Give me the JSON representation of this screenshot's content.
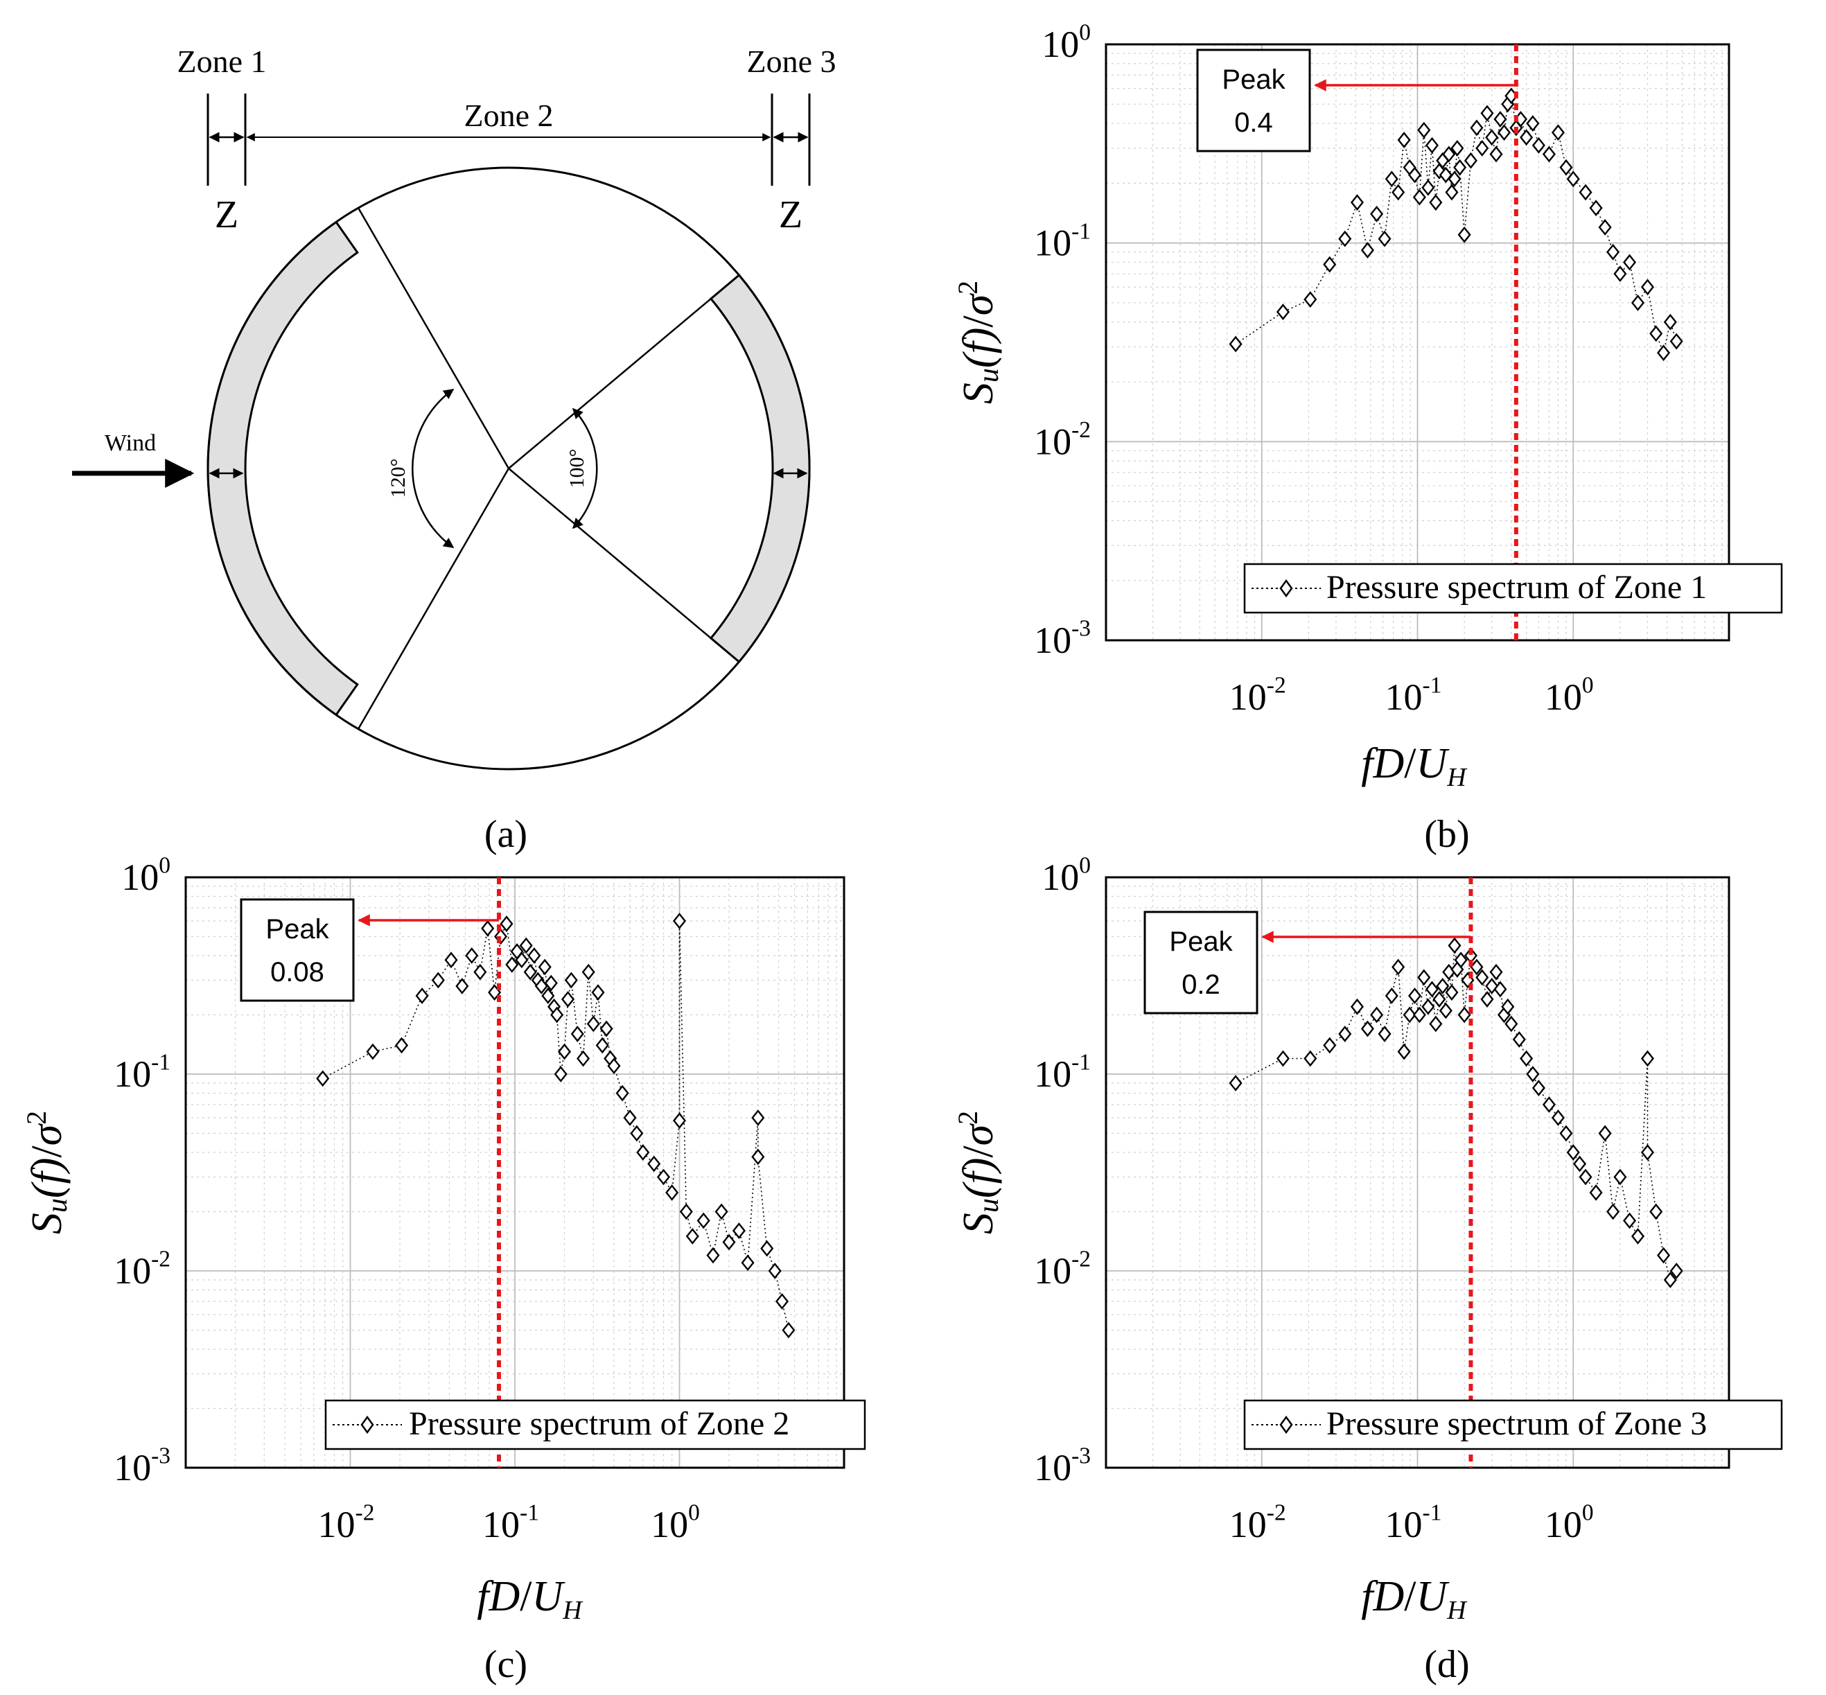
{
  "diagram": {
    "caption": "(a)",
    "zone1_label": "Zone 1",
    "zone2_label": "Zone 2",
    "zone3_label": "Zone 3",
    "z_left": "Z",
    "z_right": "Z",
    "wind_label": "Wind",
    "angle_left": "120°",
    "angle_right": "100°"
  },
  "colors": {
    "peak_line": "#e8161b",
    "marker": "#000000",
    "grid": "#cfcfcf"
  },
  "chart_data": [
    {
      "type": "scatter",
      "caption": "(b)",
      "xscale": "log",
      "yscale": "log",
      "xlim": [
        0.001,
        10
      ],
      "ylim": [
        0.001,
        1
      ],
      "xticks": [
        0.01,
        0.1,
        1
      ],
      "yticks": [
        0.001,
        0.01,
        0.1,
        1
      ],
      "xlabel_main": "fD",
      "xlabel_sub": "H",
      "ylabel_main": "S",
      "ylabel_sub": "u",
      "legend": "Pressure spectrum of Zone 1",
      "peak_title": "Peak",
      "peak_value": "0.4",
      "peak_x": 0.43,
      "series": [
        {
          "name": "Pressure spectrum of Zone 1",
          "x": [
            0.0068,
            0.0137,
            0.0205,
            0.0273,
            0.0342,
            0.041,
            0.0478,
            0.0547,
            0.0615,
            0.0683,
            0.0752,
            0.082,
            0.089,
            0.096,
            0.103,
            0.11,
            0.117,
            0.124,
            0.131,
            0.138,
            0.145,
            0.152,
            0.159,
            0.166,
            0.173,
            0.18,
            0.187,
            0.2,
            0.22,
            0.24,
            0.26,
            0.28,
            0.3,
            0.32,
            0.34,
            0.36,
            0.38,
            0.4,
            0.43,
            0.46,
            0.5,
            0.55,
            0.6,
            0.7,
            0.8,
            0.9,
            1.0,
            1.2,
            1.4,
            1.6,
            1.8,
            2.0,
            2.3,
            2.6,
            3.0,
            3.4,
            3.8,
            4.2,
            4.6
          ],
          "y": [
            0.031,
            0.045,
            0.052,
            0.078,
            0.105,
            0.16,
            0.092,
            0.14,
            0.105,
            0.21,
            0.18,
            0.33,
            0.24,
            0.22,
            0.17,
            0.37,
            0.19,
            0.31,
            0.16,
            0.23,
            0.26,
            0.22,
            0.28,
            0.18,
            0.21,
            0.3,
            0.24,
            0.11,
            0.26,
            0.38,
            0.3,
            0.45,
            0.34,
            0.28,
            0.42,
            0.36,
            0.5,
            0.55,
            0.38,
            0.42,
            0.34,
            0.4,
            0.31,
            0.28,
            0.36,
            0.24,
            0.21,
            0.18,
            0.15,
            0.12,
            0.09,
            0.07,
            0.08,
            0.05,
            0.06,
            0.035,
            0.028,
            0.04,
            0.032
          ]
        }
      ]
    },
    {
      "type": "scatter",
      "caption": "(c)",
      "xscale": "log",
      "yscale": "log",
      "xlim": [
        0.001,
        10
      ],
      "ylim": [
        0.001,
        1
      ],
      "xticks": [
        0.01,
        0.1,
        1
      ],
      "yticks": [
        0.001,
        0.01,
        0.1,
        1
      ],
      "xlabel_main": "fD",
      "xlabel_sub": "H",
      "ylabel_main": "S",
      "ylabel_sub": "u",
      "legend": "Pressure spectrum of Zone 2",
      "peak_title": "Peak",
      "peak_value": "0.08",
      "peak_x": 0.08,
      "series": [
        {
          "name": "Pressure spectrum of Zone 2",
          "x": [
            0.0068,
            0.0137,
            0.0205,
            0.0273,
            0.0342,
            0.041,
            0.0478,
            0.0547,
            0.0615,
            0.0683,
            0.0752,
            0.082,
            0.089,
            0.096,
            0.103,
            0.11,
            0.117,
            0.124,
            0.131,
            0.138,
            0.145,
            0.152,
            0.159,
            0.166,
            0.173,
            0.18,
            0.19,
            0.2,
            0.21,
            0.22,
            0.24,
            0.26,
            0.28,
            0.3,
            0.32,
            0.34,
            0.36,
            0.38,
            0.4,
            0.45,
            0.5,
            0.55,
            0.6,
            0.7,
            0.8,
            0.9,
            1.0,
            1.0,
            1.1,
            1.2,
            1.4,
            1.6,
            1.8,
            2.0,
            2.3,
            2.6,
            3.0,
            3.0,
            3.4,
            3.8,
            4.2,
            4.6
          ],
          "y": [
            0.095,
            0.13,
            0.14,
            0.25,
            0.3,
            0.38,
            0.28,
            0.4,
            0.33,
            0.55,
            0.26,
            0.5,
            0.58,
            0.36,
            0.42,
            0.38,
            0.45,
            0.33,
            0.4,
            0.3,
            0.28,
            0.35,
            0.25,
            0.29,
            0.22,
            0.2,
            0.1,
            0.13,
            0.24,
            0.3,
            0.16,
            0.12,
            0.33,
            0.18,
            0.26,
            0.14,
            0.17,
            0.12,
            0.11,
            0.08,
            0.06,
            0.05,
            0.04,
            0.035,
            0.03,
            0.025,
            0.058,
            0.6,
            0.02,
            0.015,
            0.018,
            0.012,
            0.02,
            0.014,
            0.016,
            0.011,
            0.06,
            0.038,
            0.013,
            0.01,
            0.007,
            0.005
          ]
        }
      ]
    },
    {
      "type": "scatter",
      "caption": "(d)",
      "xscale": "log",
      "yscale": "log",
      "xlim": [
        0.001,
        10
      ],
      "ylim": [
        0.001,
        1
      ],
      "xticks": [
        0.01,
        0.1,
        1
      ],
      "yticks": [
        0.001,
        0.01,
        0.1,
        1
      ],
      "xlabel_main": "fD",
      "xlabel_sub": "H",
      "ylabel_main": "S",
      "ylabel_sub": "u",
      "legend": "Pressure spectrum of Zone 3",
      "peak_title": "Peak",
      "peak_value": "0.2",
      "peak_x": 0.22,
      "series": [
        {
          "name": "Pressure spectrum of Zone 3",
          "x": [
            0.0068,
            0.0137,
            0.0205,
            0.0273,
            0.0342,
            0.041,
            0.0478,
            0.0547,
            0.0615,
            0.0683,
            0.0752,
            0.082,
            0.089,
            0.096,
            0.103,
            0.11,
            0.117,
            0.124,
            0.131,
            0.138,
            0.145,
            0.152,
            0.159,
            0.166,
            0.173,
            0.18,
            0.19,
            0.2,
            0.21,
            0.22,
            0.24,
            0.26,
            0.28,
            0.3,
            0.32,
            0.34,
            0.36,
            0.38,
            0.4,
            0.45,
            0.5,
            0.55,
            0.6,
            0.7,
            0.8,
            0.9,
            1.0,
            1.1,
            1.2,
            1.4,
            1.6,
            1.8,
            2.0,
            2.3,
            2.6,
            3.0,
            3.0,
            3.4,
            3.8,
            4.2,
            4.6
          ],
          "y": [
            0.09,
            0.12,
            0.12,
            0.14,
            0.16,
            0.22,
            0.17,
            0.2,
            0.16,
            0.25,
            0.35,
            0.13,
            0.2,
            0.25,
            0.2,
            0.31,
            0.22,
            0.27,
            0.18,
            0.24,
            0.28,
            0.21,
            0.33,
            0.26,
            0.45,
            0.34,
            0.38,
            0.2,
            0.3,
            0.4,
            0.35,
            0.31,
            0.24,
            0.28,
            0.33,
            0.27,
            0.2,
            0.22,
            0.18,
            0.15,
            0.12,
            0.1,
            0.085,
            0.07,
            0.06,
            0.05,
            0.04,
            0.035,
            0.03,
            0.025,
            0.05,
            0.02,
            0.03,
            0.018,
            0.015,
            0.12,
            0.04,
            0.02,
            0.012,
            0.009,
            0.01
          ]
        }
      ]
    }
  ]
}
